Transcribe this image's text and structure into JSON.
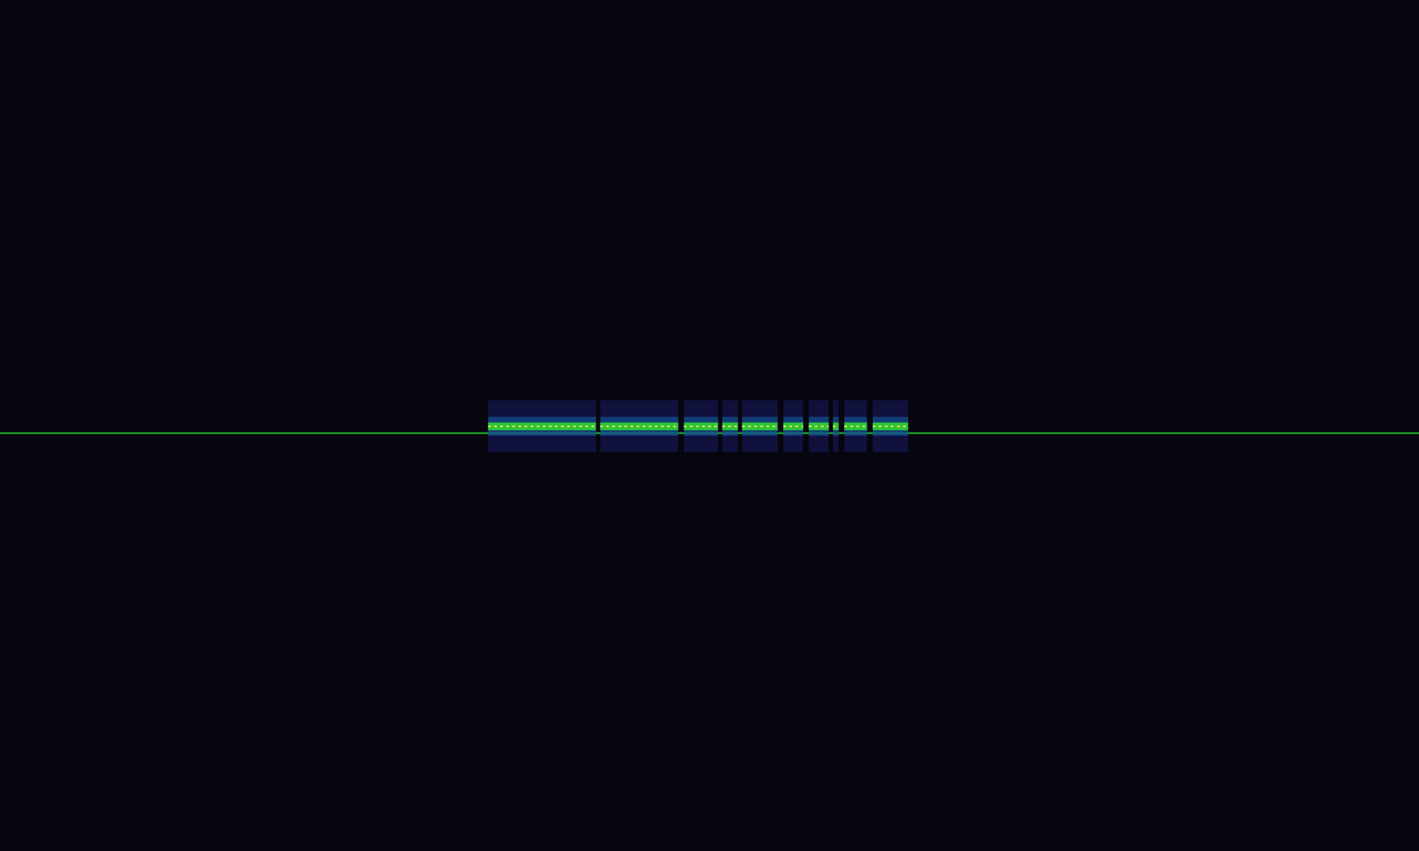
{
  "chart_data": {
    "type": "spectrogram",
    "xlim": [
      0,
      100
    ],
    "ylim": [
      0,
      100
    ],
    "tick_labels": false,
    "grid": false,
    "series": [
      {
        "type": "line",
        "color": "#1fae2a",
        "x": [
          0,
          100
        ],
        "values": [
          49.1,
          49.1
        ]
      },
      {
        "type": "segments",
        "color": "#2fc43a",
        "x_start": [
          34.4,
          42.3,
          48.2,
          50.9,
          52.3,
          55.2,
          57.0,
          58.7,
          59.5,
          61.5
        ],
        "x_end": [
          42.0,
          47.8,
          50.6,
          52.0,
          54.8,
          56.6,
          58.4,
          59.1,
          61.1,
          64.0
        ],
        "y": 49.9
      }
    ]
  }
}
